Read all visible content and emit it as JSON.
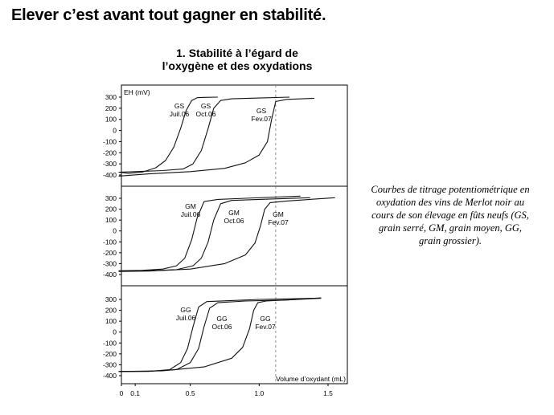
{
  "page": {
    "title": "Elever c’est avant tout gagner en stabilité.",
    "subtitle_line1": "1. Stabilité à l’égard de",
    "subtitle_line2": "l’oxygène et des oxydations",
    "caption": "Courbes de titrage potentiométrique en oxydation des vins de Merlot noir au cours de son élevage en fûts neufs (GS, grain serré, GM, grain moyen, GG, grain grossier)."
  },
  "chart_data": {
    "type": "line",
    "xlabel": "Volume d’oxydant (mL)",
    "ylabel": "EH (mV)",
    "xlim": [
      0,
      1.5
    ],
    "xticks": [
      "0",
      "0.1",
      "0.5",
      "1.0",
      "1.5"
    ],
    "xtick_values": [
      0,
      0.1,
      0.5,
      1.0,
      1.5
    ],
    "ylim": [
      -420,
      330
    ],
    "yticks": [
      "300",
      "200",
      "100",
      "0",
      "-100",
      "-200",
      "-300",
      "-400"
    ],
    "ytick_values": [
      300,
      200,
      100,
      0,
      -100,
      -200,
      -300,
      -400
    ],
    "reference_line_x": 1.12,
    "panels": [
      {
        "group": "GS",
        "series": [
          {
            "name": "GS Juil.06",
            "label_line1": "GS",
            "label_line2": "Juil.06",
            "x": [
              -0.02,
              0.05,
              0.15,
              0.25,
              0.32,
              0.38,
              0.43,
              0.47,
              0.51,
              0.55,
              0.6,
              0.7
            ],
            "y": [
              -375,
              -385,
              -375,
              -335,
              -270,
              -150,
              20,
              180,
              270,
              295,
              298,
              300
            ]
          },
          {
            "name": "GS Oct.06",
            "label_line1": "GS",
            "label_line2": "Oct.06",
            "x": [
              -0.02,
              0.1,
              0.3,
              0.45,
              0.52,
              0.58,
              0.63,
              0.67,
              0.72,
              0.8,
              1.0,
              1.22
            ],
            "y": [
              -375,
              -370,
              -360,
              -345,
              -300,
              -180,
              20,
              200,
              270,
              285,
              292,
              300
            ]
          },
          {
            "name": "GS Fev.07",
            "label_line1": "GS",
            "label_line2": "Fev.07",
            "x": [
              -0.02,
              0.2,
              0.5,
              0.75,
              0.9,
              1.0,
              1.06,
              1.09,
              1.12,
              1.2,
              1.4
            ],
            "y": [
              -410,
              -390,
              -370,
              -340,
              -290,
              -220,
              -100,
              100,
              260,
              280,
              290
            ]
          }
        ]
      },
      {
        "group": "GM",
        "series": [
          {
            "name": "GM Juil.06",
            "label_line1": "GM",
            "label_line2": "Juil.06",
            "x": [
              -0.02,
              0.15,
              0.3,
              0.4,
              0.46,
              0.51,
              0.55,
              0.6,
              0.7,
              0.9,
              1.3
            ],
            "y": [
              -365,
              -362,
              -350,
              -320,
              -250,
              -80,
              120,
              270,
              290,
              300,
              320
            ]
          },
          {
            "name": "GM Oct.06",
            "label_line1": "GM",
            "label_line2": "Oct.06",
            "x": [
              -0.02,
              0.2,
              0.4,
              0.52,
              0.58,
              0.63,
              0.67,
              0.72,
              0.8,
              1.0,
              1.37
            ],
            "y": [
              -368,
              -365,
              -355,
              -320,
              -250,
              -100,
              100,
              250,
              280,
              290,
              305
            ]
          },
          {
            "name": "GM Fev.07",
            "label_line1": "GM",
            "label_line2": "Fev.07",
            "x": [
              -0.02,
              0.2,
              0.5,
              0.75,
              0.9,
              0.97,
              1.01,
              1.04,
              1.08,
              1.2,
              1.55
            ],
            "y": [
              -372,
              -368,
              -350,
              -300,
              -220,
              -110,
              50,
              200,
              260,
              275,
              305
            ]
          }
        ]
      },
      {
        "group": "GG",
        "series": [
          {
            "name": "GG Juil.06",
            "label_line1": "GG",
            "label_line2": "Juil.06",
            "x": [
              -0.02,
              0.2,
              0.35,
              0.43,
              0.48,
              0.52,
              0.56,
              0.62,
              0.8,
              1.0,
              1.4
            ],
            "y": [
              -362,
              -360,
              -345,
              -280,
              -150,
              50,
              230,
              280,
              290,
              300,
              310
            ]
          },
          {
            "name": "GG Oct.06",
            "label_line1": "GG",
            "label_line2": "Oct.06",
            "x": [
              -0.02,
              0.2,
              0.4,
              0.5,
              0.56,
              0.6,
              0.64,
              0.7,
              0.9,
              1.2,
              1.45
            ],
            "y": [
              -362,
              -360,
              -345,
              -280,
              -150,
              50,
              220,
              270,
              285,
              295,
              310
            ]
          },
          {
            "name": "GG Fev.07",
            "label_line1": "GG",
            "label_line2": "Fev.07",
            "x": [
              -0.02,
              0.3,
              0.6,
              0.8,
              0.88,
              0.93,
              0.96,
              0.99,
              1.05,
              1.2,
              1.45
            ],
            "y": [
              -362,
              -355,
              -320,
              -240,
              -140,
              30,
              200,
              270,
              285,
              295,
              315
            ]
          }
        ]
      }
    ]
  }
}
